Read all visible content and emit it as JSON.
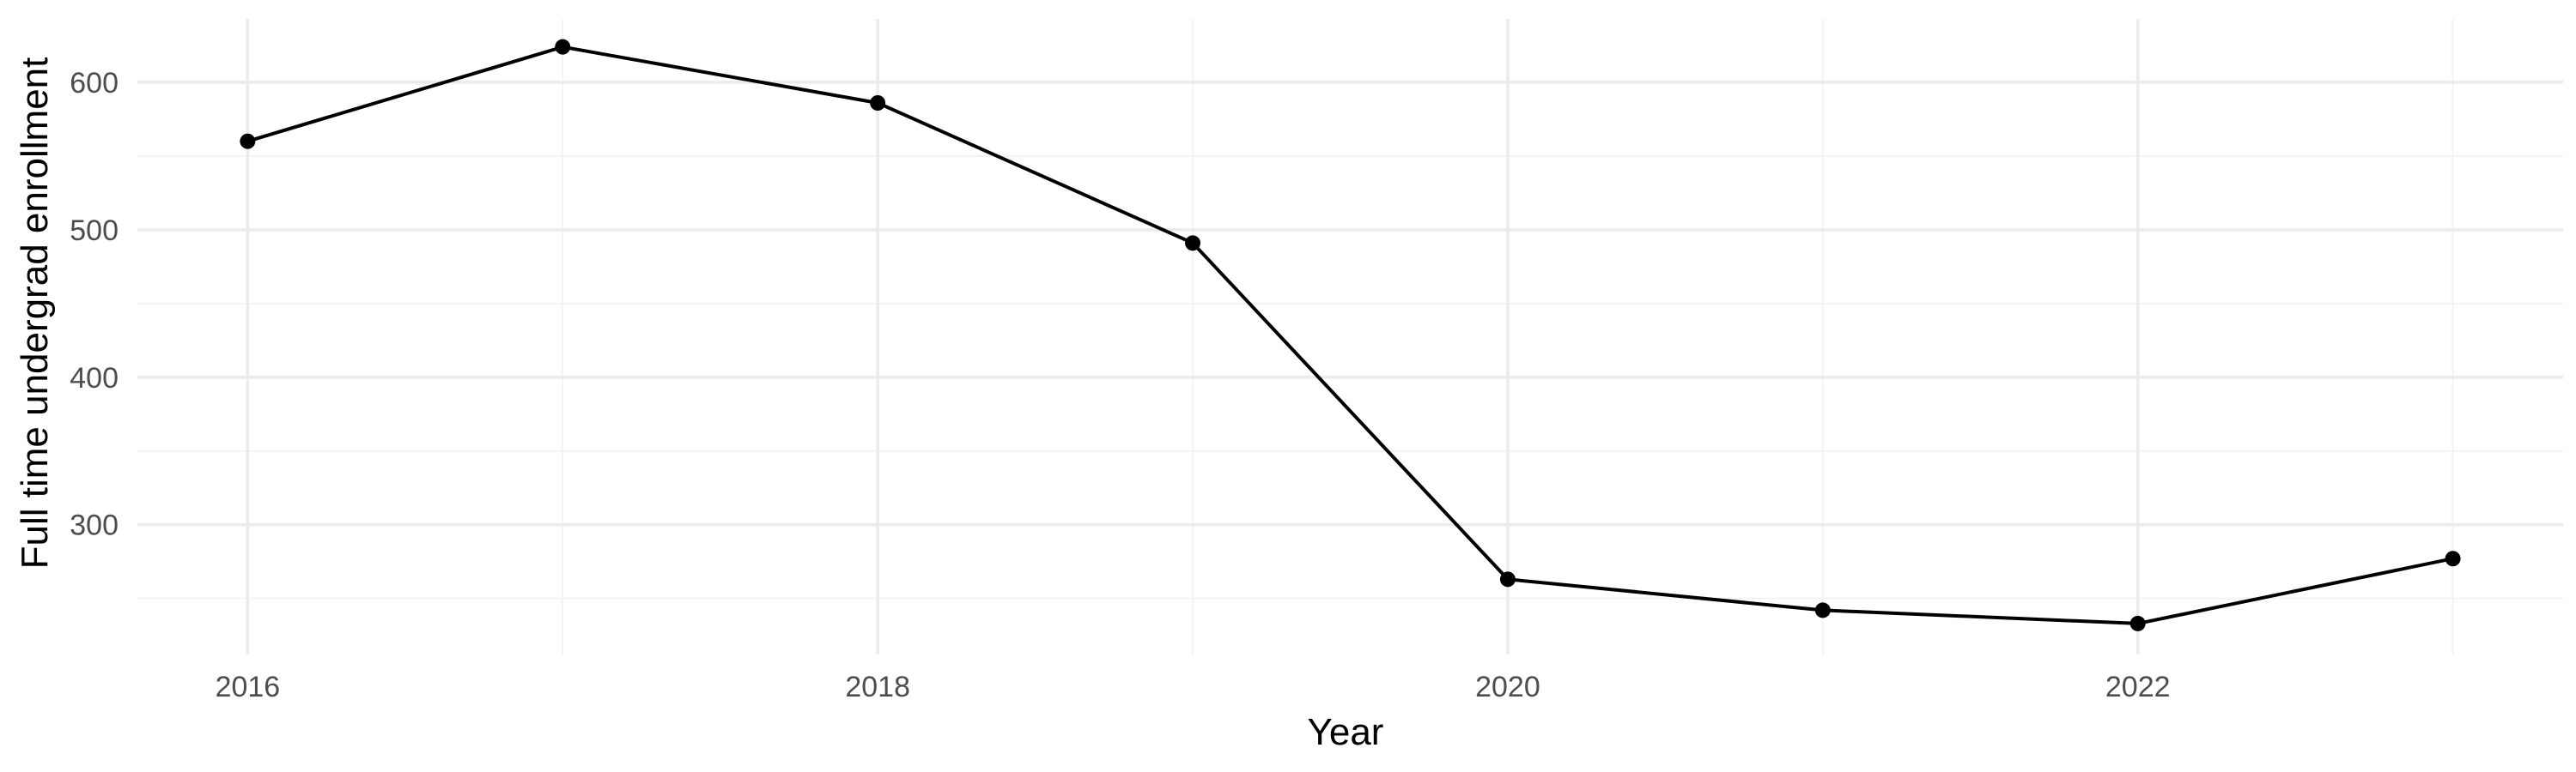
{
  "chart_data": {
    "type": "line",
    "title": "",
    "xlabel": "Year",
    "ylabel": "Full time undergrad enrollment",
    "x": [
      2016,
      2017,
      2018,
      2019,
      2020,
      2021,
      2022,
      2023
    ],
    "series": [
      {
        "values": [
          560,
          624,
          586,
          491,
          263,
          242,
          233,
          277
        ],
        "color": "#000000",
        "marker": "circle"
      }
    ],
    "xlim": [
      2015.65,
      2023.35
    ],
    "ylim": [
      212,
      643
    ],
    "x_ticks": [
      2016,
      2018,
      2020,
      2022
    ],
    "x_tick_labels": [
      "2016",
      "2018",
      "2020",
      "2022"
    ],
    "y_ticks": [
      300,
      400,
      500,
      600
    ],
    "y_tick_labels": [
      "300",
      "400",
      "500",
      "600"
    ],
    "grid": true,
    "legend": "none",
    "colors": {
      "background": "#ffffff",
      "grid_major": "#ebebeb",
      "grid_minor": "#f3f3f3",
      "line": "#000000",
      "tick_text": "#4d4d4d",
      "axis_title": "#000000"
    }
  }
}
